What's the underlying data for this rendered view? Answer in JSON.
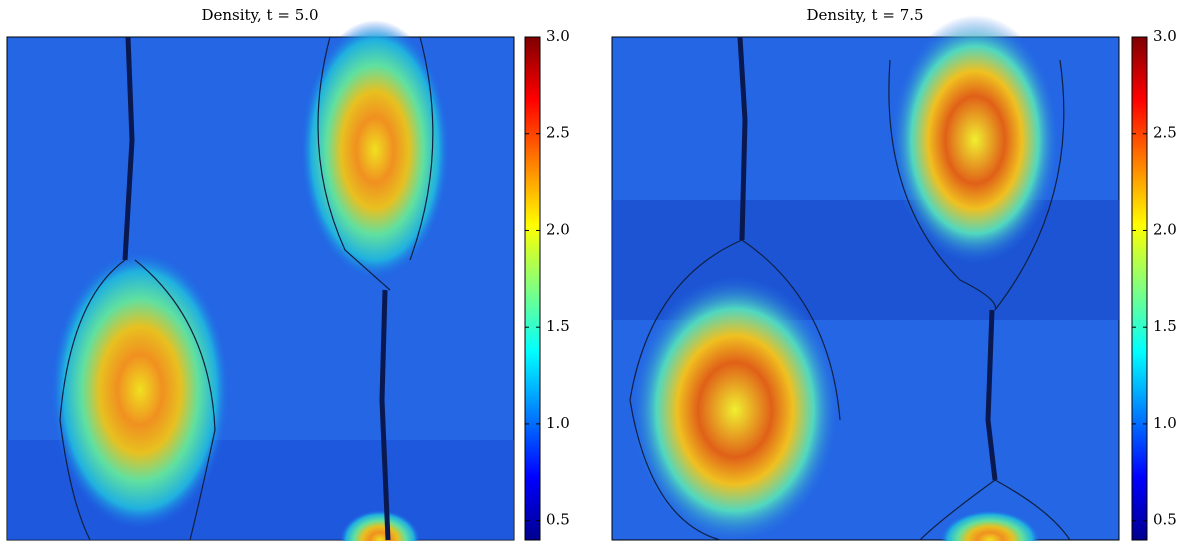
{
  "chart_data": [
    {
      "type": "heatmap",
      "title": "Density, t = 5.0",
      "colormap": "jet",
      "clim": [
        0.4,
        3.0
      ],
      "cticks": [
        {
          "value": 0.5,
          "label": "0.5"
        },
        {
          "value": 1.0,
          "label": "1.0"
        },
        1.5,
        {
          "value": 2.0,
          "label": "2.0"
        },
        2.5,
        {
          "value": 3.0,
          "label": "3.0"
        }
      ]
    },
    {
      "type": "heatmap",
      "title": "Density, t = 7.5",
      "colormap": "jet",
      "clim": [
        0.4,
        3.0
      ],
      "cticks": [
        {
          "value": 0.5,
          "label": "0.5"
        },
        {
          "value": 1.0,
          "label": "1.0"
        },
        1.5,
        {
          "value": 2.0,
          "label": "2.0"
        },
        2.5,
        {
          "value": 3.0,
          "label": "3.0"
        }
      ]
    }
  ]
}
